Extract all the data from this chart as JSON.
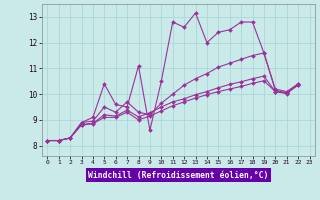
{
  "background_color": "#caeaea",
  "plot_bg_color": "#caeaea",
  "xlabel_bg_color": "#6600aa",
  "xlabel_text_color": "#ffffff",
  "line_color": "#993399",
  "xlabel": "Windchill (Refroidissement éolien,°C)",
  "ylabel_ticks": [
    8,
    9,
    10,
    11,
    12,
    13
  ],
  "xlim": [
    -0.5,
    23.5
  ],
  "ylim": [
    7.6,
    13.5
  ],
  "xticks": [
    0,
    1,
    2,
    3,
    4,
    5,
    6,
    7,
    8,
    9,
    10,
    11,
    12,
    13,
    14,
    15,
    16,
    17,
    18,
    19,
    20,
    21,
    22,
    23
  ],
  "grid_color": "#aad8d8",
  "series": [
    {
      "x": [
        0,
        1,
        2,
        3,
        4,
        5,
        6,
        7,
        8,
        9,
        10,
        11,
        12,
        13,
        14,
        15,
        16,
        17,
        18,
        19,
        20,
        21,
        22
      ],
      "y": [
        8.2,
        8.2,
        8.3,
        8.9,
        9.1,
        10.4,
        9.6,
        9.5,
        11.1,
        8.6,
        10.5,
        12.8,
        12.6,
        13.15,
        12.0,
        12.4,
        12.5,
        12.8,
        12.8,
        11.6,
        10.2,
        10.1,
        10.4
      ]
    },
    {
      "x": [
        0,
        1,
        2,
        3,
        4,
        5,
        6,
        7,
        8,
        9,
        10,
        11,
        12,
        13,
        14,
        15,
        16,
        17,
        18,
        19,
        20,
        21,
        22
      ],
      "y": [
        8.2,
        8.2,
        8.3,
        8.9,
        8.95,
        9.5,
        9.3,
        9.7,
        9.3,
        9.2,
        9.65,
        10.0,
        10.35,
        10.6,
        10.8,
        11.05,
        11.2,
        11.35,
        11.5,
        11.6,
        10.15,
        10.05,
        10.4
      ]
    },
    {
      "x": [
        0,
        1,
        2,
        3,
        4,
        5,
        6,
        7,
        8,
        9,
        10,
        11,
        12,
        13,
        14,
        15,
        16,
        17,
        18,
        19,
        20,
        21,
        22
      ],
      "y": [
        8.2,
        8.2,
        8.3,
        8.8,
        8.85,
        9.1,
        9.1,
        9.3,
        9.0,
        9.15,
        9.35,
        9.55,
        9.7,
        9.85,
        9.98,
        10.1,
        10.2,
        10.3,
        10.42,
        10.52,
        10.1,
        10.05,
        10.35
      ]
    },
    {
      "x": [
        0,
        1,
        2,
        3,
        4,
        5,
        6,
        7,
        8,
        9,
        10,
        11,
        12,
        13,
        14,
        15,
        16,
        17,
        18,
        19,
        20,
        21,
        22
      ],
      "y": [
        8.2,
        8.2,
        8.3,
        8.82,
        8.87,
        9.2,
        9.15,
        9.38,
        9.12,
        9.28,
        9.5,
        9.7,
        9.82,
        9.98,
        10.1,
        10.25,
        10.38,
        10.48,
        10.6,
        10.7,
        10.1,
        10.02,
        10.36
      ]
    }
  ]
}
